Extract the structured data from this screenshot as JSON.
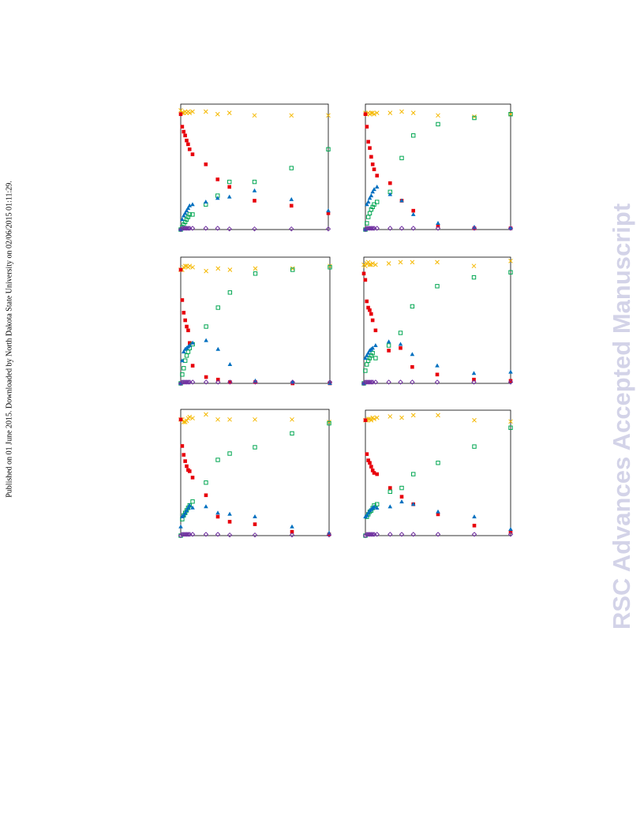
{
  "side_note": "Published on 01 June 2015. Downloaded by North Dakota State University on 02/06/2015 01:11:29.",
  "watermark": "RSC Advances Accepted Manuscript",
  "chart_data": [
    {
      "type": "scatter",
      "xlim": [
        0,
        100
      ],
      "ylim": [
        0,
        100
      ],
      "x": [
        0,
        1,
        2,
        3,
        4,
        5,
        6,
        8,
        17,
        25,
        33,
        50,
        75,
        100
      ],
      "series": [
        {
          "color": "#f5b800",
          "marker": "cross",
          "values": [
            95,
            93,
            93,
            94,
            93,
            94,
            93,
            94,
            94,
            92,
            93,
            91,
            91,
            91
          ]
        },
        {
          "color": "#e8000b",
          "marker": "square",
          "values": [
            92,
            82,
            78,
            75,
            71,
            68,
            64,
            60,
            52,
            40,
            34,
            23,
            19,
            13
          ]
        },
        {
          "color": "#00a651",
          "marker": "open-square",
          "values": [
            0,
            2,
            4,
            6,
            8,
            10,
            12,
            12,
            20,
            27,
            38,
            38,
            49,
            64
          ]
        },
        {
          "color": "#0070c0",
          "marker": "triangle",
          "values": [
            0,
            8,
            11,
            13,
            15,
            17,
            19,
            20,
            22,
            25,
            26,
            31,
            24,
            15
          ]
        },
        {
          "color": "#7030a0",
          "marker": "open-diamond",
          "values": [
            0,
            1,
            1,
            1,
            1,
            1,
            1,
            1,
            1,
            1,
            0.5,
            0.5,
            0.5,
            0.5
          ]
        }
      ]
    },
    {
      "type": "scatter",
      "xlim": [
        0,
        100
      ],
      "ylim": [
        0,
        100
      ],
      "x": [
        0,
        1,
        2,
        3,
        4,
        5,
        6,
        8,
        17,
        25,
        33,
        50,
        75,
        100
      ],
      "series": [
        {
          "color": "#f5b800",
          "marker": "cross",
          "values": [
            93,
            92,
            93,
            92,
            93,
            93,
            92,
            93,
            93,
            94,
            93,
            91,
            90,
            92
          ]
        },
        {
          "color": "#e8000b",
          "marker": "square",
          "values": [
            92,
            82,
            70,
            65,
            58,
            52,
            48,
            43,
            37,
            23,
            15,
            3,
            1,
            1
          ]
        },
        {
          "color": "#00a651",
          "marker": "open-square",
          "values": [
            0,
            5,
            10,
            13,
            16,
            18,
            20,
            22,
            30,
            57,
            75,
            84,
            89,
            92
          ]
        },
        {
          "color": "#0070c0",
          "marker": "triangle",
          "values": [
            0,
            20,
            22,
            25,
            27,
            30,
            32,
            34,
            28,
            23,
            12,
            5,
            2,
            1
          ]
        },
        {
          "color": "#7030a0",
          "marker": "open-diamond",
          "values": [
            0,
            1,
            1,
            1,
            1,
            1,
            1,
            1,
            1,
            1,
            1,
            1,
            1,
            1
          ]
        }
      ]
    },
    {
      "type": "scatter",
      "xlim": [
        0,
        100
      ],
      "ylim": [
        0,
        100
      ],
      "x": [
        0,
        1,
        2,
        3,
        4,
        5,
        6,
        8,
        17,
        25,
        33,
        50,
        75,
        100
      ],
      "series": [
        {
          "color": "#f5b800",
          "marker": "cross",
          "values": [
            90,
            90,
            92,
            93,
            93,
            92,
            93,
            92,
            89,
            91,
            90,
            91,
            91,
            93
          ]
        },
        {
          "color": "#e8000b",
          "marker": "square",
          "values": [
            90,
            66,
            56,
            50,
            45,
            42,
            32,
            14,
            5,
            3,
            1,
            1,
            0,
            0
          ]
        },
        {
          "color": "#00a651",
          "marker": "open-square",
          "values": [
            0,
            7,
            12,
            18,
            22,
            25,
            28,
            31,
            45,
            60,
            72,
            87,
            90,
            92
          ]
        },
        {
          "color": "#0070c0",
          "marker": "triangle",
          "values": [
            0,
            18,
            25,
            27,
            28,
            29,
            30,
            32,
            34,
            27,
            15,
            2,
            1,
            0
          ]
        },
        {
          "color": "#7030a0",
          "marker": "open-diamond",
          "values": [
            0,
            1,
            1,
            1,
            1,
            1,
            1,
            1,
            1,
            1,
            1,
            1,
            1,
            1
          ]
        }
      ]
    },
    {
      "type": "scatter",
      "xlim": [
        0,
        100
      ],
      "ylim": [
        0,
        100
      ],
      "x": [
        0,
        1,
        2,
        3,
        4,
        5,
        6,
        8,
        17,
        25,
        33,
        50,
        75,
        100
      ],
      "series": [
        {
          "color": "#f5b800",
          "marker": "cross",
          "values": [
            94,
            93,
            95,
            96,
            94,
            94,
            95,
            94,
            95,
            96,
            96,
            96,
            93,
            97
          ]
        },
        {
          "color": "#e8000b",
          "marker": "square",
          "values": [
            87,
            82,
            65,
            60,
            58,
            55,
            50,
            42,
            26,
            28,
            13,
            7,
            3,
            2
          ]
        },
        {
          "color": "#00a651",
          "marker": "open-square",
          "values": [
            0,
            10,
            15,
            18,
            20,
            22,
            24,
            20,
            30,
            40,
            61,
            77,
            84,
            88
          ]
        },
        {
          "color": "#0070c0",
          "marker": "triangle",
          "values": [
            0,
            20,
            22,
            24,
            26,
            27,
            28,
            30,
            33,
            31,
            23,
            14,
            8,
            9
          ]
        },
        {
          "color": "#7030a0",
          "marker": "open-diamond",
          "values": [
            0,
            1,
            1,
            1,
            1,
            1,
            1,
            1,
            1,
            1,
            1,
            1,
            1,
            1
          ]
        }
      ]
    },
    {
      "type": "scatter",
      "xlim": [
        0,
        100
      ],
      "ylim": [
        0,
        100
      ],
      "x": [
        0,
        1,
        2,
        3,
        4,
        5,
        6,
        8,
        17,
        25,
        33,
        50,
        75,
        100
      ],
      "series": [
        {
          "color": "#f5b800",
          "marker": "cross",
          "values": [
            92,
            92,
            90,
            90,
            91,
            93,
            94,
            93,
            96,
            92,
            92,
            92,
            92,
            90
          ]
        },
        {
          "color": "#e8000b",
          "marker": "square",
          "values": [
            92,
            71,
            64,
            59,
            55,
            52,
            51,
            46,
            32,
            15,
            11,
            9,
            3,
            1
          ]
        },
        {
          "color": "#00a651",
          "marker": "open-square",
          "values": [
            0,
            13,
            16,
            18,
            20,
            22,
            24,
            27,
            42,
            60,
            65,
            70,
            81,
            89
          ]
        },
        {
          "color": "#0070c0",
          "marker": "triangle",
          "values": [
            7,
            15,
            16,
            18,
            20,
            22,
            24,
            22,
            23,
            18,
            17,
            15,
            7,
            2
          ]
        },
        {
          "color": "#7030a0",
          "marker": "open-diamond",
          "values": [
            0,
            1,
            1,
            1,
            1,
            1,
            1,
            1,
            1,
            1,
            0.5,
            0.5,
            0.5,
            0.5
          ]
        }
      ]
    },
    {
      "type": "scatter",
      "xlim": [
        0,
        100
      ],
      "ylim": [
        0,
        100
      ],
      "x": [
        0,
        1,
        2,
        3,
        4,
        5,
        6,
        8,
        17,
        25,
        33,
        50,
        75,
        100
      ],
      "series": [
        {
          "color": "#f5b800",
          "marker": "cross",
          "values": [
            92,
            92,
            93,
            93,
            92,
            94,
            93,
            94,
            95,
            94,
            96,
            96,
            92,
            91
          ]
        },
        {
          "color": "#e8000b",
          "marker": "square",
          "values": [
            92,
            65,
            60,
            58,
            55,
            52,
            50,
            49,
            38,
            31,
            25,
            17,
            8,
            3
          ]
        },
        {
          "color": "#00a651",
          "marker": "open-square",
          "values": [
            0,
            15,
            17,
            19,
            20,
            22,
            24,
            25,
            35,
            38,
            49,
            58,
            71,
            86
          ]
        },
        {
          "color": "#0070c0",
          "marker": "triangle",
          "values": [
            15,
            16,
            18,
            20,
            21,
            22,
            23,
            22,
            23,
            27,
            25,
            19,
            15,
            5
          ]
        },
        {
          "color": "#7030a0",
          "marker": "open-diamond",
          "values": [
            0,
            1,
            1,
            1,
            1,
            1,
            1,
            1,
            1,
            1,
            1,
            1,
            1,
            1
          ]
        }
      ]
    }
  ]
}
